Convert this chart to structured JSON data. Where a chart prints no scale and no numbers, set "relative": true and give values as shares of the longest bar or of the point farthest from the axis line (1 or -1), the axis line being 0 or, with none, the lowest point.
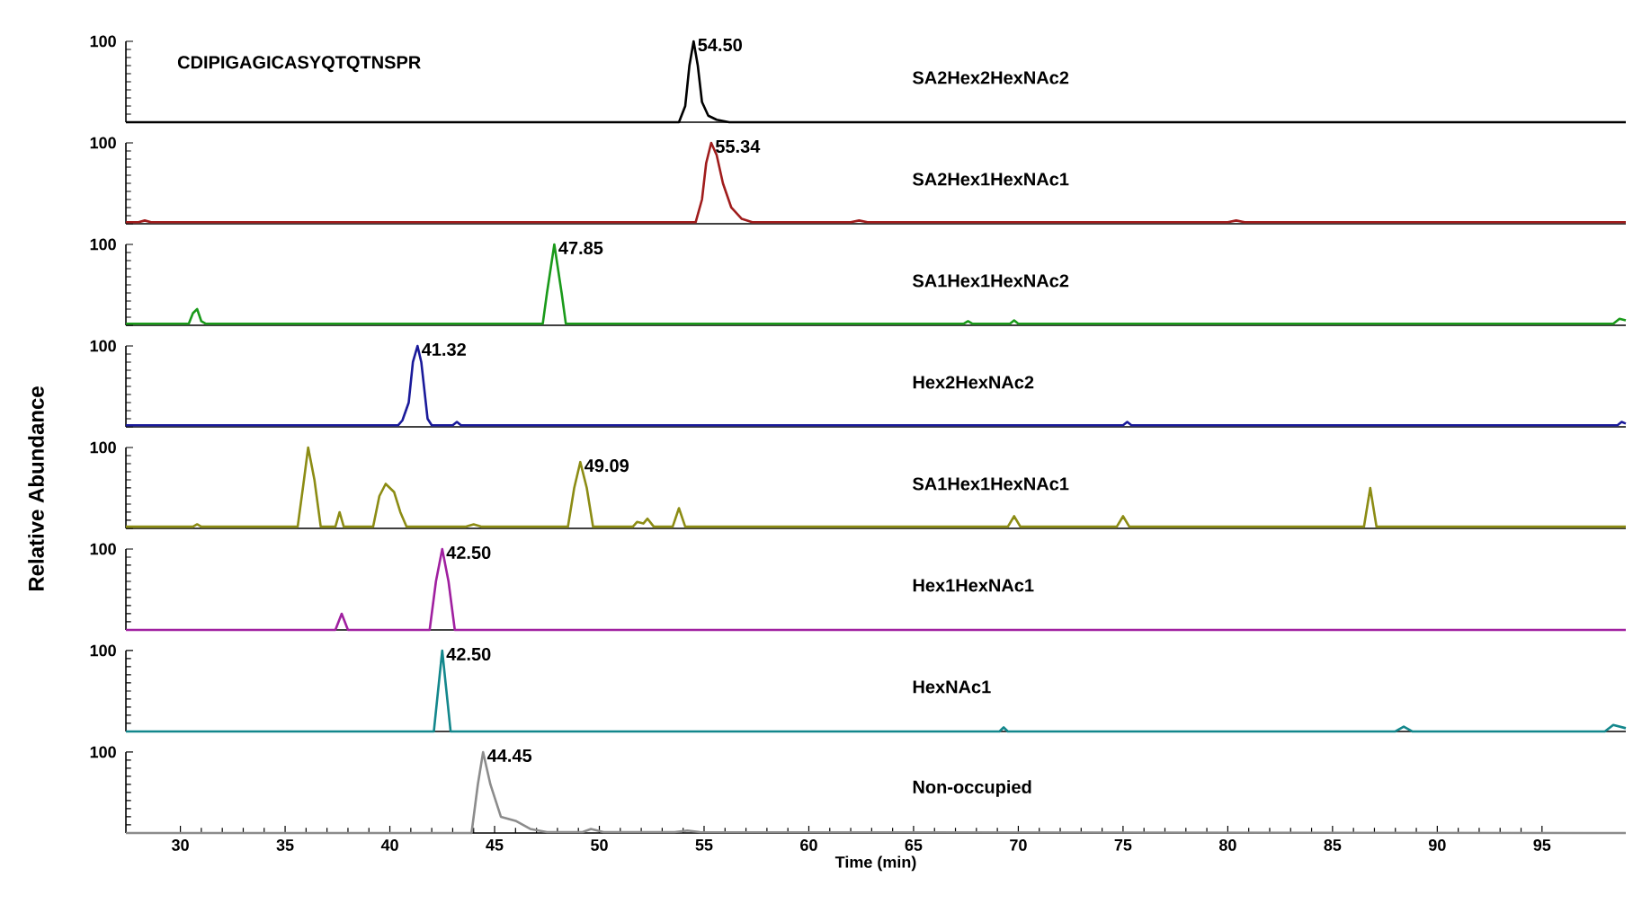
{
  "chart_data": [
    {
      "type": "line",
      "relative": true,
      "title": "SA2Hex2HexNAc2",
      "annotations": [
        "100",
        "CDIPIGAGICASYQTQTNSPR",
        {
          "text": "54.50",
          "x": 54.5,
          "y": 1
        }
      ],
      "xlim": [
        27.4,
        99
      ],
      "x": [
        27.4,
        53.8,
        54.1,
        54.3,
        54.5,
        54.7,
        54.9,
        55.2,
        55.6,
        56.2,
        99
      ],
      "series": [
        {
          "color": "#000000",
          "values": [
            0,
            0,
            0.2,
            0.7,
            1,
            0.7,
            0.25,
            0.08,
            0.03,
            0,
            0
          ]
        }
      ]
    },
    {
      "type": "line",
      "relative": true,
      "title": "SA2Hex1HexNAc1",
      "annotations": [
        "100",
        {
          "text": "55.34",
          "x": 55.34,
          "y": 1
        }
      ],
      "xlim": [
        27.4,
        99
      ],
      "x": [
        27.4,
        28,
        28.3,
        28.6,
        54.6,
        54.9,
        55.1,
        55.34,
        55.6,
        55.9,
        56.3,
        56.8,
        57.3,
        62,
        62.4,
        62.8,
        80,
        80.4,
        80.8,
        99
      ],
      "series": [
        {
          "color": "#a01c1c",
          "values": [
            0.02,
            0.02,
            0.04,
            0.02,
            0.02,
            0.3,
            0.75,
            1,
            0.85,
            0.5,
            0.2,
            0.06,
            0.02,
            0.02,
            0.04,
            0.02,
            0.02,
            0.04,
            0.02,
            0.02
          ]
        }
      ]
    },
    {
      "type": "line",
      "relative": true,
      "title": "SA1Hex1HexNAc2",
      "annotations": [
        "100",
        {
          "text": "47.85",
          "x": 47.85,
          "y": 1
        }
      ],
      "xlim": [
        27.4,
        99
      ],
      "x": [
        27.4,
        30.4,
        30.6,
        30.8,
        31,
        31.2,
        47.3,
        47.5,
        47.85,
        48.2,
        48.4,
        67.4,
        67.6,
        67.8,
        69.6,
        69.8,
        70,
        98.4,
        98.7,
        99
      ],
      "series": [
        {
          "color": "#1a9a1a",
          "values": [
            0.02,
            0.02,
            0.15,
            0.2,
            0.05,
            0.02,
            0.02,
            0.4,
            1,
            0.4,
            0.02,
            0.02,
            0.05,
            0.02,
            0.02,
            0.06,
            0.02,
            0.02,
            0.08,
            0.06
          ]
        }
      ]
    },
    {
      "type": "line",
      "relative": true,
      "title": "Hex2HexNAc2",
      "annotations": [
        "100",
        {
          "text": "41.32",
          "x": 41.32,
          "y": 1
        }
      ],
      "xlim": [
        27.4,
        99
      ],
      "x": [
        27.4,
        40.4,
        40.6,
        40.9,
        41.1,
        41.32,
        41.5,
        41.8,
        42,
        43,
        43.2,
        43.4,
        75,
        75.2,
        75.4,
        98.6,
        98.8,
        99
      ],
      "series": [
        {
          "color": "#1a1a9a",
          "values": [
            0.02,
            0.02,
            0.08,
            0.3,
            0.8,
            1,
            0.8,
            0.1,
            0.02,
            0.02,
            0.06,
            0.02,
            0.02,
            0.06,
            0.02,
            0.02,
            0.06,
            0.04
          ]
        }
      ]
    },
    {
      "type": "line",
      "relative": true,
      "title": "SA1Hex1HexNAc1",
      "ylabel": "Relative Abundance",
      "annotations": [
        "100",
        {
          "text": "49.09",
          "x": 49.09,
          "y": 0.82
        }
      ],
      "xlim": [
        27.4,
        99
      ],
      "x": [
        27.4,
        30.6,
        30.8,
        31,
        35.6,
        35.9,
        36.1,
        36.4,
        36.7,
        37.4,
        37.6,
        37.8,
        39.2,
        39.5,
        39.8,
        40.2,
        40.5,
        40.8,
        43.6,
        44,
        44.4,
        48.5,
        48.8,
        49.09,
        49.4,
        49.7,
        51.6,
        51.8,
        52.1,
        52.3,
        52.6,
        53.5,
        53.8,
        54.1,
        69.5,
        69.8,
        70.1,
        74.7,
        75,
        75.3,
        86.5,
        86.8,
        87.1,
        99
      ],
      "series": [
        {
          "color": "#8c8c14",
          "values": [
            0.02,
            0.02,
            0.05,
            0.02,
            0.02,
            0.6,
            1,
            0.6,
            0.02,
            0.02,
            0.2,
            0.02,
            0.02,
            0.4,
            0.55,
            0.45,
            0.2,
            0.02,
            0.02,
            0.05,
            0.02,
            0.02,
            0.5,
            0.82,
            0.5,
            0.02,
            0.02,
            0.08,
            0.06,
            0.12,
            0.02,
            0.02,
            0.25,
            0.02,
            0.02,
            0.15,
            0.02,
            0.02,
            0.15,
            0.02,
            0.02,
            0.5,
            0.02,
            0.02
          ]
        }
      ]
    },
    {
      "type": "line",
      "relative": true,
      "title": "Hex1HexNAc1",
      "annotations": [
        "100",
        {
          "text": "42.50",
          "x": 42.5,
          "y": 1
        }
      ],
      "xlim": [
        27.4,
        99
      ],
      "x": [
        27.4,
        37.4,
        37.7,
        38,
        41.9,
        42.2,
        42.5,
        42.8,
        43.1,
        99
      ],
      "series": [
        {
          "color": "#a020a0",
          "values": [
            0,
            0,
            0.2,
            0,
            0,
            0.6,
            1,
            0.6,
            0,
            0
          ]
        }
      ]
    },
    {
      "type": "line",
      "relative": true,
      "title": "HexNAc1",
      "annotations": [
        "100",
        {
          "text": "42.50",
          "x": 42.5,
          "y": 1
        }
      ],
      "xlim": [
        27.4,
        99
      ],
      "x": [
        27.4,
        42.1,
        42.3,
        42.5,
        42.7,
        42.9,
        69.1,
        69.3,
        69.5,
        88,
        88.4,
        88.8,
        98,
        98.4,
        99
      ],
      "series": [
        {
          "color": "#13878c",
          "values": [
            0,
            0,
            0.5,
            1,
            0.5,
            0,
            0,
            0.05,
            0,
            0,
            0.06,
            0,
            0,
            0.08,
            0.04
          ]
        }
      ]
    },
    {
      "type": "line",
      "relative": true,
      "title": "Non-occupied",
      "xlabel": "Time (min)",
      "annotations": [
        "100",
        {
          "text": "44.45",
          "x": 44.45,
          "y": 1
        }
      ],
      "xlim": [
        27.4,
        99
      ],
      "xticks": [
        30,
        35,
        40,
        45,
        50,
        55,
        60,
        65,
        70,
        75,
        80,
        85,
        90,
        95
      ],
      "x": [
        27.4,
        43.9,
        44.2,
        44.45,
        44.8,
        45.3,
        46,
        46.7,
        47.5,
        49.2,
        49.6,
        50.2,
        53.6,
        54.2,
        54.8,
        99
      ],
      "series": [
        {
          "color": "#8c8c8c",
          "values": [
            0,
            0,
            0.6,
            1,
            0.6,
            0.2,
            0.15,
            0.05,
            0.01,
            0.01,
            0.05,
            0.01,
            0.01,
            0.03,
            0.01,
            0
          ]
        }
      ]
    }
  ]
}
